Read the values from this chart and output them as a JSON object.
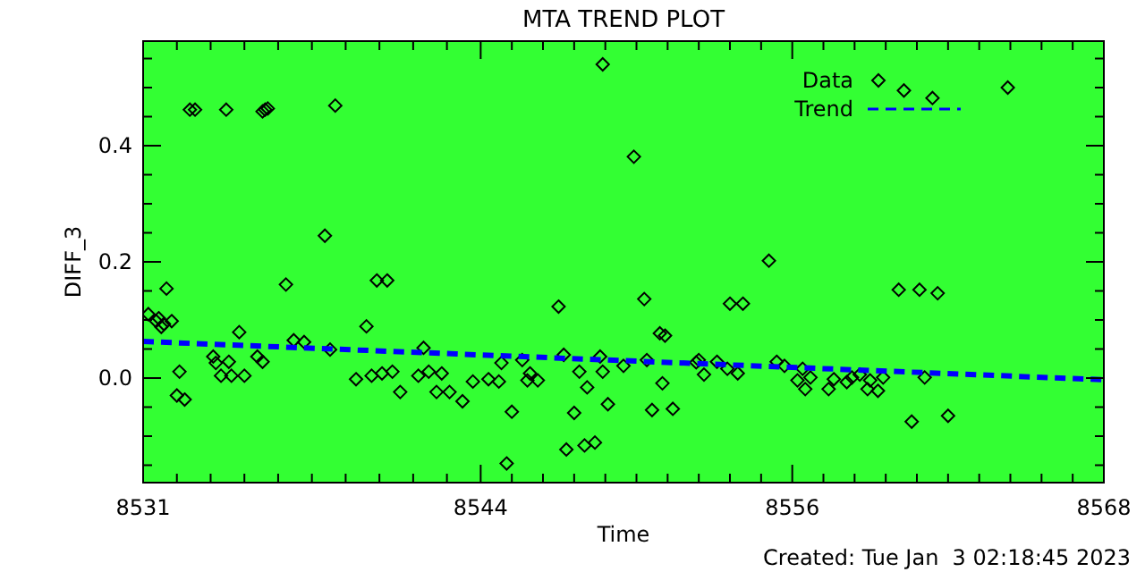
{
  "chart_data": {
    "type": "scatter",
    "title": "MTA TREND PLOT",
    "xlabel": "Time",
    "ylabel": "DIFF_3",
    "annotations": [
      "Created: Tue Jan  3 02:18:45 2023"
    ],
    "xlim": [
      8531,
      8568
    ],
    "xticks": [
      8531,
      {
        "value": 8532.3,
        "label": null
      },
      {
        "value": 8533.6,
        "label": null
      },
      {
        "value": 8534.9,
        "label": null
      },
      {
        "value": 8536.2,
        "label": null
      },
      {
        "value": 8537.5,
        "label": null
      },
      {
        "value": 8538.8,
        "label": null
      },
      {
        "value": 8540.1,
        "label": null
      },
      {
        "value": 8541.4,
        "label": null
      },
      {
        "value": 8542.7,
        "label": null
      },
      8544,
      {
        "value": 8545.2,
        "label": null
      },
      {
        "value": 8546.4,
        "label": null
      },
      {
        "value": 8547.6,
        "label": null
      },
      {
        "value": 8548.8,
        "label": null
      },
      {
        "value": 8550,
        "label": null
      },
      {
        "value": 8551.2,
        "label": null
      },
      {
        "value": 8552.4,
        "label": null
      },
      {
        "value": 8553.6,
        "label": null
      },
      {
        "value": 8554.8,
        "label": null
      },
      8556,
      {
        "value": 8557.2,
        "label": null
      },
      {
        "value": 8558.4,
        "label": null
      },
      {
        "value": 8559.6,
        "label": null
      },
      {
        "value": 8560.8,
        "label": null
      },
      {
        "value": 8562,
        "label": null
      },
      {
        "value": 8563.2,
        "label": null
      },
      {
        "value": 8564.4,
        "label": null
      },
      {
        "value": 8565.6,
        "label": null
      },
      {
        "value": 8566.8,
        "label": null
      },
      8568
    ],
    "ylim": [
      -0.18,
      0.58
    ],
    "yticks": [
      {
        "value": -0.15,
        "label": null
      },
      {
        "value": -0.1,
        "label": null
      },
      {
        "value": -0.05,
        "label": null
      },
      {
        "value": 0,
        "label": "0.0"
      },
      {
        "value": 0.05,
        "label": null
      },
      {
        "value": 0.1,
        "label": null
      },
      {
        "value": 0.15,
        "label": null
      },
      {
        "value": 0.2,
        "label": "0.2"
      },
      {
        "value": 0.25,
        "label": null
      },
      {
        "value": 0.3,
        "label": null
      },
      {
        "value": 0.35,
        "label": null
      },
      {
        "value": 0.4,
        "label": "0.4"
      },
      {
        "value": 0.45,
        "label": null
      },
      {
        "value": 0.5,
        "label": null
      },
      {
        "value": 0.55,
        "label": null
      }
    ],
    "grid": false,
    "legend": "top right",
    "marker": "diamond",
    "series": [
      {
        "name": "Data",
        "color": "#000000",
        "x": [
          8531.2,
          8531.5,
          8531.7,
          8531.6,
          8531.8,
          8531.9,
          8532.1,
          8532.4,
          8532.3,
          8532.6,
          8532.8,
          8533.0,
          8534.2,
          8535.6,
          8535.7,
          8535.8,
          8538.4,
          8538.0,
          8536.5,
          8533.7,
          8533.8,
          8534.0,
          8534.3,
          8534.4,
          8534.9,
          8534.7,
          8535.4,
          8535.6,
          8536.8,
          8537.2,
          8538.2,
          8539.2,
          8539.6,
          8539.8,
          8540.0,
          8540.2,
          8540.4,
          8540.6,
          8540.9,
          8541.6,
          8541.8,
          8542.0,
          8542.3,
          8542.5,
          8542.8,
          8543.3,
          8543.7,
          8544.3,
          8544.7,
          8544.8,
          8545.0,
          8545.2,
          8545.6,
          8545.8,
          8545.9,
          8546.2,
          8547.0,
          8547.2,
          8547.3,
          8547.6,
          8547.8,
          8548.0,
          8548.1,
          8548.4,
          8548.6,
          8548.7,
          8548.7,
          8548.9,
          8549.9,
          8550.3,
          8550.9,
          8551.1,
          8551.0,
          8550.6,
          8551.4,
          8549.5,
          8550.4,
          8552.4,
          8552.6,
          8552.3,
          8553.1,
          8553.5,
          8553.6,
          8554.1,
          8553.9,
          8555.1,
          8555.4,
          8555.7,
          8556.4,
          8556.2,
          8556.5,
          8556.7,
          8557.4,
          8557.6,
          8558.1,
          8558.3,
          8558.6,
          8558.9,
          8559.3,
          8559.0,
          8559.5,
          8560.1,
          8560.9,
          8561.6,
          8560.6,
          8562.0,
          8561.1,
          8564.3,
          8560.3,
          8561.4
        ],
        "values": [
          0.11,
          0.098,
          0.088,
          0.103,
          0.093,
          0.154,
          0.098,
          0.011,
          -0.03,
          -0.037,
          0.462,
          0.462,
          0.462,
          0.459,
          0.462,
          0.464,
          0.469,
          0.245,
          0.161,
          0.037,
          0.026,
          0.004,
          0.028,
          0.004,
          0.004,
          0.079,
          0.037,
          0.028,
          0.065,
          0.062,
          0.049,
          -0.002,
          0.089,
          0.004,
          0.168,
          0.008,
          0.168,
          0.011,
          -0.024,
          0.004,
          0.052,
          0.011,
          -0.024,
          0.008,
          -0.024,
          -0.04,
          -0.006,
          -0.002,
          -0.006,
          0.026,
          -0.147,
          -0.058,
          0.031,
          -0.004,
          0.008,
          -0.004,
          0.123,
          0.04,
          -0.123,
          -0.06,
          0.011,
          -0.116,
          -0.016,
          -0.111,
          0.037,
          0.54,
          0.011,
          -0.045,
          0.381,
          0.136,
          0.077,
          0.073,
          -0.009,
          -0.055,
          -0.053,
          0.021,
          0.031,
          0.031,
          0.006,
          0.027,
          0.028,
          0.016,
          0.128,
          0.128,
          0.008,
          0.202,
          0.028,
          0.021,
          0.016,
          -0.004,
          -0.019,
          0.001,
          -0.019,
          -0.002,
          -0.007,
          0.001,
          0.006,
          -0.019,
          -0.022,
          -0.004,
          0.001,
          0.152,
          0.152,
          0.146,
          -0.075,
          -0.065,
          0.001,
          0.5,
          0.495,
          0.482
        ]
      },
      {
        "name": "Trend",
        "type": "line",
        "color": "#0000ff",
        "line_style": "dashed",
        "marker": "none",
        "x": [
          8531,
          8568
        ],
        "values": [
          0.063,
          -0.003
        ]
      }
    ]
  }
}
